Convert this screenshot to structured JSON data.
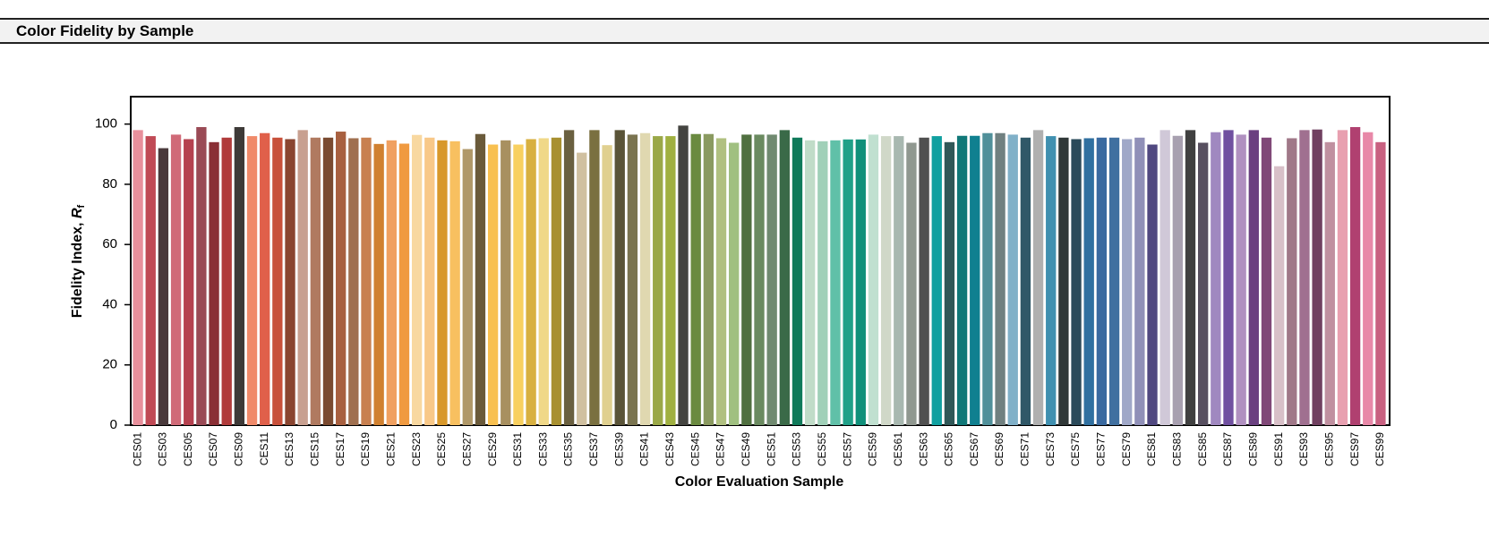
{
  "chart_data": {
    "type": "bar",
    "title": "Color Fidelity by Sample",
    "xlabel": "Color Evaluation Sample",
    "ylabel": {
      "text": "Fidelity Index, ",
      "symbol": "R",
      "subscript": "f"
    },
    "categories": [
      "CES01",
      null,
      "CES03",
      null,
      "CES05",
      null,
      "CES07",
      null,
      "CES09",
      null,
      "CES11",
      null,
      "CES13",
      null,
      "CES15",
      null,
      "CES17",
      null,
      "CES19",
      null,
      "CES21",
      null,
      "CES23",
      null,
      "CES25",
      null,
      "CES27",
      null,
      "CES29",
      null,
      "CES31",
      null,
      "CES33",
      null,
      "CES35",
      null,
      "CES37",
      null,
      "CES39",
      null,
      "CES41",
      null,
      "CES43",
      null,
      "CES45",
      null,
      "CES47",
      null,
      "CES49",
      null,
      "CES51",
      null,
      "CES53",
      null,
      "CES55",
      null,
      "CES57",
      null,
      "CES59",
      null,
      "CES61",
      null,
      "CES63",
      null,
      "CES65",
      null,
      "CES67",
      null,
      "CES69",
      null,
      "CES71",
      null,
      "CES73",
      null,
      "CES75",
      null,
      "CES77",
      null,
      "CES79",
      null,
      "CES81",
      null,
      "CES83",
      null,
      "CES85",
      null,
      "CES87",
      null,
      "CES89",
      null,
      "CES91",
      null,
      "CES93",
      null,
      "CES95",
      null,
      "CES97",
      null,
      "CES99"
    ],
    "values": [
      98,
      96,
      92,
      96.5,
      95,
      99,
      94,
      95.5,
      99,
      96,
      97,
      95.5,
      95,
      98,
      95.5,
      95.5,
      97.5,
      95.3,
      95.5,
      93.4,
      94.6,
      93.5,
      96.4,
      95.5,
      94.6,
      94.3,
      91.7,
      96.7,
      93.2,
      94.6,
      93.2,
      95,
      95.3,
      95.5,
      98,
      90.5,
      98,
      93,
      98,
      96.5,
      97,
      96,
      96,
      99.5,
      96.7,
      96.7,
      95.3,
      93.8,
      96.5,
      96.5,
      96.5,
      98,
      95.5,
      94.6,
      94.3,
      94.6,
      94.9,
      94.9,
      96.5,
      96,
      96,
      93.8,
      95.5,
      96,
      94,
      96.1,
      96.1,
      97,
      97,
      96.5,
      95.5,
      98,
      96,
      95.5,
      95,
      95.3,
      95.5,
      95.5,
      95,
      95.5,
      93.2,
      98,
      96.1,
      98,
      93.8,
      97.3,
      98,
      96.5,
      98,
      95.5,
      86,
      95.3,
      98,
      98.2,
      94,
      98,
      99,
      97.3,
      94
    ],
    "colors": [
      "#e8909c",
      "#c04a55",
      "#4a3a3c",
      "#d06a78",
      "#b5414f",
      "#9a4a55",
      "#8a2f35",
      "#b03b3b",
      "#3e3a38",
      "#f08a6a",
      "#e0604a",
      "#c8503a",
      "#8a4530",
      "#c8a090",
      "#b07a60",
      "#7a4a30",
      "#a86040",
      "#a07050",
      "#c88050",
      "#d08030",
      "#f0a060",
      "#f09a40",
      "#f8d8a0",
      "#f8c888",
      "#d8982a",
      "#f8c060",
      "#b09868",
      "#6a5a3a",
      "#f8c050",
      "#a89060",
      "#f8d060",
      "#d8b040",
      "#f0d888",
      "#a89030",
      "#6a6040",
      "#d0c0a0",
      "#7a7040",
      "#e0d090",
      "#5a5438",
      "#7a7450",
      "#e0d8b0",
      "#9aa848",
      "#a0b040",
      "#444440",
      "#6a8a40",
      "#8a9a60",
      "#b0c080",
      "#a0c080",
      "#507040",
      "#6a8a60",
      "#708a70",
      "#3a6a48",
      "#107a5a",
      "#c0dcc8",
      "#a0d0b8",
      "#60c0a8",
      "#20a088",
      "#10907a",
      "#c0e0d0",
      "#d0d8c8",
      "#a8b8b0",
      "#909890",
      "#505050",
      "#10a0a0",
      "#305858",
      "#107878",
      "#108090",
      "#50909a",
      "#708080",
      "#80b0c8",
      "#305868",
      "#b0b0b0",
      "#4090b0",
      "#303838",
      "#2a4a5a",
      "#3070a0",
      "#3a6aa0",
      "#4070a0",
      "#a0a8c8",
      "#9090b8",
      "#504880",
      "#d0c8d8",
      "#a8a0b0",
      "#404040",
      "#585060",
      "#a088c0",
      "#7050a0",
      "#b090c0",
      "#6a4080",
      "#804878",
      "#d8c0c8",
      "#a07888",
      "#a07090",
      "#704060",
      "#c090a0",
      "#e8a0b0",
      "#b04070",
      "#e888a8",
      "#c86080"
    ],
    "ylim": [
      0,
      110
    ],
    "yticks": [
      0,
      20,
      40,
      60,
      80,
      100
    ],
    "grid": false
  }
}
